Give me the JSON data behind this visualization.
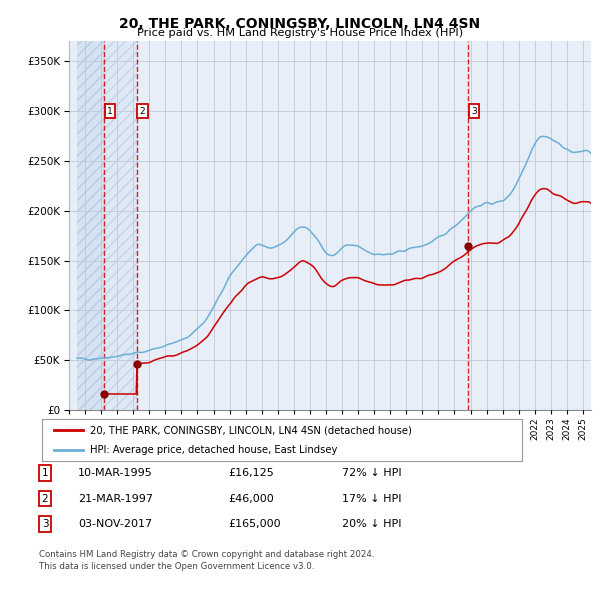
{
  "title": "20, THE PARK, CONINGSBY, LINCOLN, LN4 4SN",
  "subtitle": "Price paid vs. HM Land Registry's House Price Index (HPI)",
  "sales": [
    {
      "label": "1",
      "date": "10-MAR-1995",
      "price": 16125,
      "year": 1995.19
    },
    {
      "label": "2",
      "date": "21-MAR-1997",
      "price": 46000,
      "year": 1997.22
    },
    {
      "label": "3",
      "date": "03-NOV-2017",
      "price": 165000,
      "year": 2017.84
    }
  ],
  "legend_line1": "20, THE PARK, CONINGSBY, LINCOLN, LN4 4SN (detached house)",
  "legend_line2": "HPI: Average price, detached house, East Lindsey",
  "table_rows": [
    {
      "num": "1",
      "date": "10-MAR-1995",
      "price": "£16,125",
      "pct": "72% ↓ HPI"
    },
    {
      "num": "2",
      "date": "21-MAR-1997",
      "price": "£46,000",
      "pct": "17% ↓ HPI"
    },
    {
      "num": "3",
      "date": "03-NOV-2017",
      "price": "£165,000",
      "pct": "20% ↓ HPI"
    }
  ],
  "footnote1": "Contains HM Land Registry data © Crown copyright and database right 2024.",
  "footnote2": "This data is licensed under the Open Government Licence v3.0.",
  "hpi_color": "#6baed6",
  "price_color": "#cc0000",
  "sale_dot_color": "#880000",
  "vline_color": "#cc0000",
  "grid_color": "#c0c8d8",
  "bg_color": "#e8eef8",
  "ylim": [
    0,
    370000
  ],
  "xlim_start": 1993.5,
  "xlim_end": 2025.5
}
